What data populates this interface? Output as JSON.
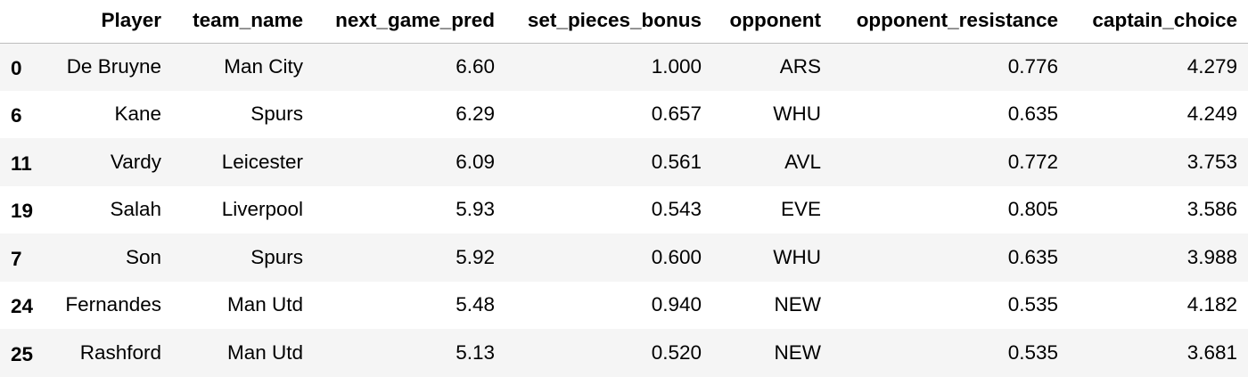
{
  "table": {
    "columns": [
      "",
      "Player",
      "team_name",
      "next_game_pred",
      "set_pieces_bonus",
      "opponent",
      "opponent_resistance",
      "captain_choice"
    ],
    "rows": [
      {
        "index": "0",
        "player": "De Bruyne",
        "team_name": "Man City",
        "next_game_pred": "6.60",
        "set_pieces_bonus": "1.000",
        "opponent": "ARS",
        "opponent_resistance": "0.776",
        "captain_choice": "4.279"
      },
      {
        "index": "6",
        "player": "Kane",
        "team_name": "Spurs",
        "next_game_pred": "6.29",
        "set_pieces_bonus": "0.657",
        "opponent": "WHU",
        "opponent_resistance": "0.635",
        "captain_choice": "4.249"
      },
      {
        "index": "11",
        "player": "Vardy",
        "team_name": "Leicester",
        "next_game_pred": "6.09",
        "set_pieces_bonus": "0.561",
        "opponent": "AVL",
        "opponent_resistance": "0.772",
        "captain_choice": "3.753"
      },
      {
        "index": "19",
        "player": "Salah",
        "team_name": "Liverpool",
        "next_game_pred": "5.93",
        "set_pieces_bonus": "0.543",
        "opponent": "EVE",
        "opponent_resistance": "0.805",
        "captain_choice": "3.586"
      },
      {
        "index": "7",
        "player": "Son",
        "team_name": "Spurs",
        "next_game_pred": "5.92",
        "set_pieces_bonus": "0.600",
        "opponent": "WHU",
        "opponent_resistance": "0.635",
        "captain_choice": "3.988"
      },
      {
        "index": "24",
        "player": "Fernandes",
        "team_name": "Man Utd",
        "next_game_pred": "5.48",
        "set_pieces_bonus": "0.940",
        "opponent": "NEW",
        "opponent_resistance": "0.535",
        "captain_choice": "4.182"
      },
      {
        "index": "25",
        "player": "Rashford",
        "team_name": "Man Utd",
        "next_game_pred": "5.13",
        "set_pieces_bonus": "0.520",
        "opponent": "NEW",
        "opponent_resistance": "0.535",
        "captain_choice": "3.681"
      }
    ]
  },
  "colors": {
    "stripe": "#f5f5f5",
    "background": "#ffffff",
    "header_rule": "#bdbdbd",
    "text": "#000000"
  }
}
